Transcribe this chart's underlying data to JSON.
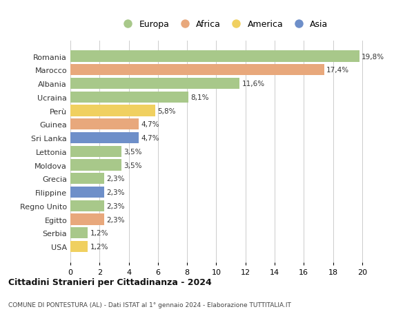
{
  "countries": [
    "Romania",
    "Marocco",
    "Albania",
    "Ucraina",
    "Perù",
    "Guinea",
    "Sri Lanka",
    "Lettonia",
    "Moldova",
    "Grecia",
    "Filippine",
    "Regno Unito",
    "Egitto",
    "Serbia",
    "USA"
  ],
  "values": [
    19.8,
    17.4,
    11.6,
    8.1,
    5.8,
    4.7,
    4.7,
    3.5,
    3.5,
    2.3,
    2.3,
    2.3,
    2.3,
    1.2,
    1.2
  ],
  "labels": [
    "19,8%",
    "17,4%",
    "11,6%",
    "8,1%",
    "5,8%",
    "4,7%",
    "4,7%",
    "3,5%",
    "3,5%",
    "2,3%",
    "2,3%",
    "2,3%",
    "2,3%",
    "1,2%",
    "1,2%"
  ],
  "continents": [
    "Europa",
    "Africa",
    "Europa",
    "Europa",
    "America",
    "Africa",
    "Asia",
    "Europa",
    "Europa",
    "Europa",
    "Asia",
    "Europa",
    "Africa",
    "Europa",
    "America"
  ],
  "colors": {
    "Europa": "#a8c88a",
    "Africa": "#e8a87c",
    "America": "#f0d060",
    "Asia": "#6e8fc9"
  },
  "legend_labels": [
    "Europa",
    "Africa",
    "America",
    "Asia"
  ],
  "legend_colors": [
    "#a8c88a",
    "#e8a87c",
    "#f0d060",
    "#6e8fc9"
  ],
  "title": "Cittadini Stranieri per Cittadinanza - 2024",
  "subtitle": "COMUNE DI PONTESTURA (AL) - Dati ISTAT al 1° gennaio 2024 - Elaborazione TUTTITALIA.IT",
  "xlim": [
    0,
    21
  ],
  "xticks": [
    0,
    2,
    4,
    6,
    8,
    10,
    12,
    14,
    16,
    18,
    20
  ],
  "bg_color": "#ffffff",
  "grid_color": "#cccccc",
  "bar_height": 0.82
}
